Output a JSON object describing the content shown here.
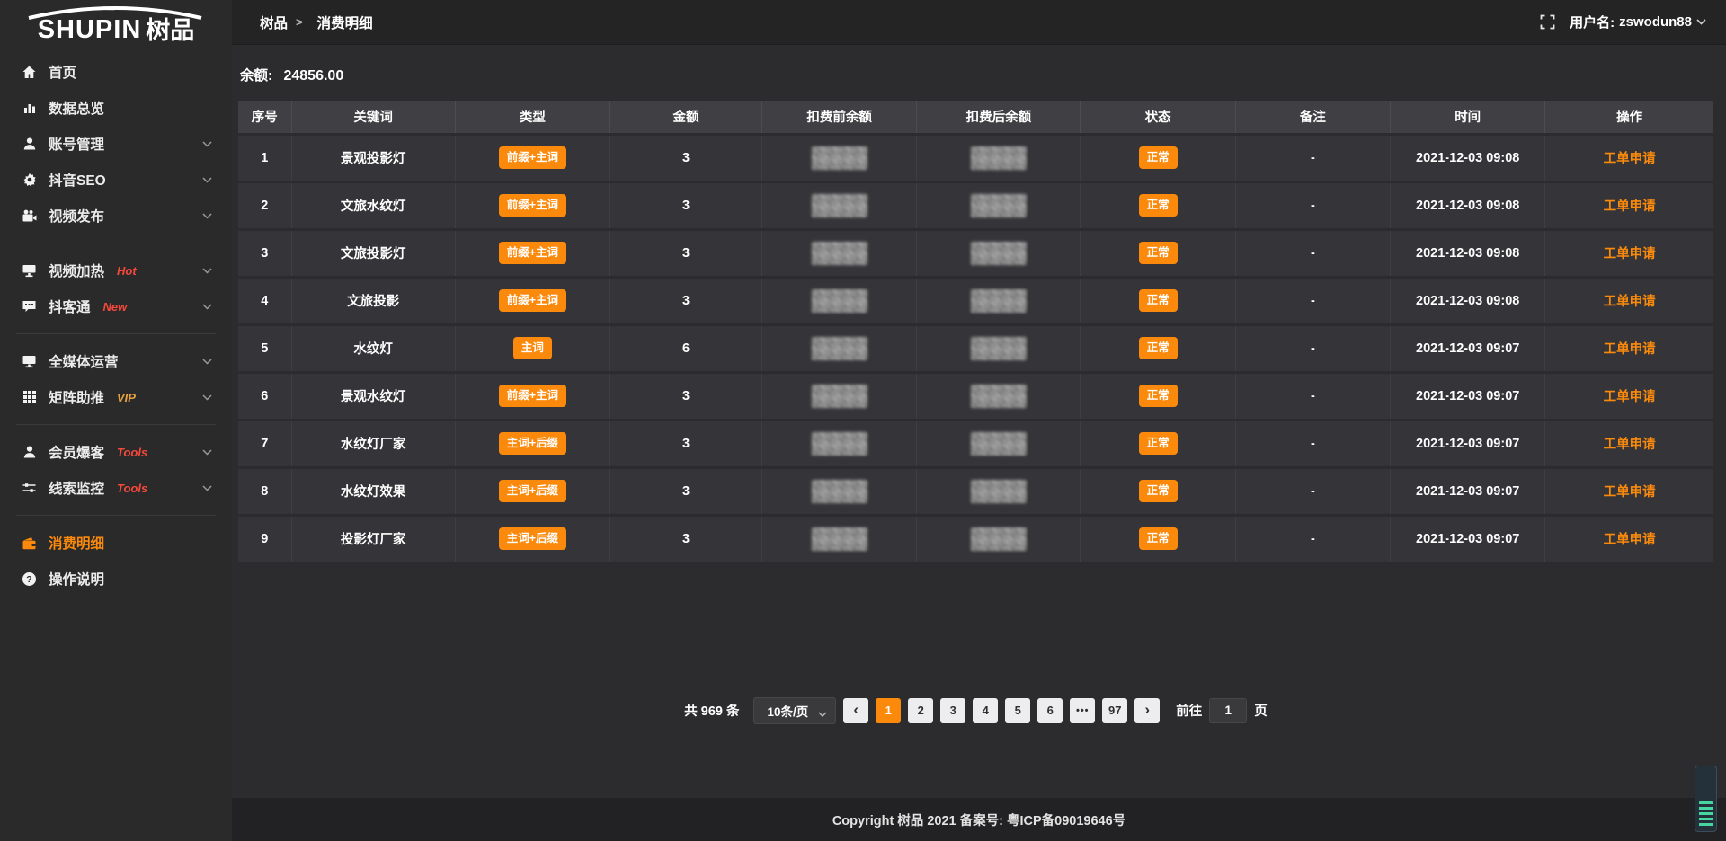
{
  "brand": {
    "logo_text": "SHUPIN",
    "logo_suffix": "树品"
  },
  "topbar": {
    "breadcrumb": [
      {
        "label": "树品",
        "icon": "app-icon"
      },
      {
        "label": "消费明细",
        "icon": "wallet-icon"
      }
    ],
    "breadcrumb_separator": ">",
    "username_label": "用户名:",
    "username": "zswodun88"
  },
  "sidebar": {
    "items": [
      {
        "label": "首页",
        "icon": "home-icon"
      },
      {
        "label": "数据总览",
        "icon": "chart-icon"
      },
      {
        "label": "账号管理",
        "icon": "user-icon",
        "chevron": true
      },
      {
        "label": "抖音SEO",
        "icon": "gear-icon",
        "chevron": true
      },
      {
        "label": "视频发布",
        "icon": "video-icon",
        "chevron": true
      },
      {
        "divider": true
      },
      {
        "label": "视频加热",
        "tag": "Hot",
        "tag_color": "#f5483b",
        "icon": "screen-icon",
        "chevron": true
      },
      {
        "label": "抖客通",
        "tag": "New",
        "tag_color": "#f5483b",
        "icon": "chat-icon",
        "chevron": true
      },
      {
        "divider": true
      },
      {
        "label": "全媒体运营",
        "icon": "monitor-icon",
        "chevron": true
      },
      {
        "label": "矩阵助推",
        "tag": "VIP",
        "tag_color": "#e8a33d",
        "icon": "grid-icon",
        "chevron": true
      },
      {
        "divider": true
      },
      {
        "label": "会员爆客",
        "tag": "Tools",
        "tag_color": "#f5483b",
        "icon": "member-icon",
        "chevron": true
      },
      {
        "label": "线索监控",
        "tag": "Tools",
        "tag_color": "#f5483b",
        "icon": "sliders-icon",
        "chevron": true
      },
      {
        "divider": true
      },
      {
        "label": "消费明细",
        "icon": "wallet-icon",
        "active": true
      },
      {
        "label": "操作说明",
        "icon": "help-icon"
      }
    ]
  },
  "balance": {
    "label": "余额:",
    "value": "24856.00"
  },
  "table": {
    "columns": [
      "序号",
      "关键词",
      "类型",
      "金额",
      "扣费前余额",
      "扣费后余额",
      "状态",
      "备注",
      "时间",
      "操作"
    ],
    "rows": [
      {
        "index": "1",
        "keyword": "景观投影灯",
        "type": "前缀+主词",
        "amount": "3",
        "pre_balance": "blurred",
        "post_balance": "blurred",
        "status": "正常",
        "remark": "-",
        "time": "2021-12-03 09:08",
        "action": "工单申请"
      },
      {
        "index": "2",
        "keyword": "文旅水纹灯",
        "type": "前缀+主词",
        "amount": "3",
        "pre_balance": "blurred",
        "post_balance": "blurred",
        "status": "正常",
        "remark": "-",
        "time": "2021-12-03 09:08",
        "action": "工单申请"
      },
      {
        "index": "3",
        "keyword": "文旅投影灯",
        "type": "前缀+主词",
        "amount": "3",
        "pre_balance": "blurred",
        "post_balance": "blurred",
        "status": "正常",
        "remark": "-",
        "time": "2021-12-03 09:08",
        "action": "工单申请"
      },
      {
        "index": "4",
        "keyword": "文旅投影",
        "type": "前缀+主词",
        "amount": "3",
        "pre_balance": "blurred",
        "post_balance": "blurred",
        "status": "正常",
        "remark": "-",
        "time": "2021-12-03 09:08",
        "action": "工单申请"
      },
      {
        "index": "5",
        "keyword": "水纹灯",
        "type": "主词",
        "amount": "6",
        "pre_balance": "blurred",
        "post_balance": "blurred",
        "status": "正常",
        "remark": "-",
        "time": "2021-12-03 09:07",
        "action": "工单申请"
      },
      {
        "index": "6",
        "keyword": "景观水纹灯",
        "type": "前缀+主词",
        "amount": "3",
        "pre_balance": "blurred",
        "post_balance": "blurred",
        "status": "正常",
        "remark": "-",
        "time": "2021-12-03 09:07",
        "action": "工单申请"
      },
      {
        "index": "7",
        "keyword": "水纹灯厂家",
        "type": "主词+后缀",
        "amount": "3",
        "pre_balance": "blurred",
        "post_balance": "blurred",
        "status": "正常",
        "remark": "-",
        "time": "2021-12-03 09:07",
        "action": "工单申请"
      },
      {
        "index": "8",
        "keyword": "水纹灯效果",
        "type": "主词+后缀",
        "amount": "3",
        "pre_balance": "blurred",
        "post_balance": "blurred",
        "status": "正常",
        "remark": "-",
        "time": "2021-12-03 09:07",
        "action": "工单申请"
      },
      {
        "index": "9",
        "keyword": "投影灯厂家",
        "type": "主词+后缀",
        "amount": "3",
        "pre_balance": "blurred",
        "post_balance": "blurred",
        "status": "正常",
        "remark": "-",
        "time": "2021-12-03 09:07",
        "action": "工单申请"
      }
    ]
  },
  "pagination": {
    "total": "共 969 条",
    "page_size": "10条/页",
    "prev": "‹",
    "next": "›",
    "pages": [
      "1",
      "2",
      "3",
      "4",
      "5",
      "6",
      "•••",
      "97"
    ],
    "active_page": "1",
    "goto_label": "前往",
    "goto_value": "1",
    "goto_suffix": "页"
  },
  "footer": {
    "copyright": "Copyright 树品 2021 备案号: 粤ICP备09019646号"
  },
  "colors": {
    "accent": "#fb8a0c",
    "tag_red": "#f5483b",
    "tag_gold": "#e8a33d"
  }
}
